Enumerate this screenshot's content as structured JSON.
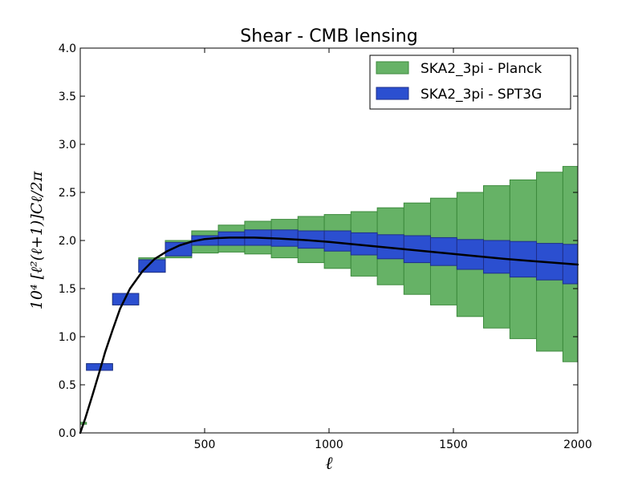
{
  "chart_data": {
    "type": "bar",
    "title": "Shear - CMB lensing",
    "xlabel": "ℓ",
    "ylabel": "10⁴ [ℓ²(ℓ+1)]Cℓ/2π",
    "xlim": [
      0,
      2000
    ],
    "ylim": [
      0.0,
      4.0
    ],
    "xticks": [
      500,
      1000,
      1500,
      2000
    ],
    "xtick_labels": [
      "500",
      "1000",
      "1500",
      "2000"
    ],
    "yticks": [
      0.0,
      0.5,
      1.0,
      1.5,
      2.0,
      2.5,
      3.0,
      3.5,
      4.0
    ],
    "ytick_labels": [
      "0.0",
      "0.5",
      "1.0",
      "1.5",
      "2.0",
      "2.5",
      "3.0",
      "3.5",
      "4.0"
    ],
    "legend_position": "top-right",
    "series": [
      {
        "name": "SKA2_3pi - Planck",
        "color": "#66b266",
        "edge_color": "#3d8a3d",
        "bins": [
          {
            "lo": 0,
            "hi": 25,
            "ymin": 0.09,
            "ymax": 0.11
          },
          {
            "lo": 25,
            "hi": 130,
            "ymin": 0.65,
            "ymax": 0.72
          },
          {
            "lo": 130,
            "hi": 235,
            "ymin": 1.33,
            "ymax": 1.45
          },
          {
            "lo": 235,
            "hi": 342,
            "ymin": 1.67,
            "ymax": 1.82
          },
          {
            "lo": 342,
            "hi": 448,
            "ymin": 1.82,
            "ymax": 2.0
          },
          {
            "lo": 448,
            "hi": 555,
            "ymin": 1.87,
            "ymax": 2.1
          },
          {
            "lo": 555,
            "hi": 661,
            "ymin": 1.88,
            "ymax": 2.16
          },
          {
            "lo": 661,
            "hi": 768,
            "ymin": 1.86,
            "ymax": 2.2
          },
          {
            "lo": 768,
            "hi": 875,
            "ymin": 1.82,
            "ymax": 2.22
          },
          {
            "lo": 875,
            "hi": 981,
            "ymin": 1.77,
            "ymax": 2.25
          },
          {
            "lo": 981,
            "hi": 1088,
            "ymin": 1.71,
            "ymax": 2.27
          },
          {
            "lo": 1088,
            "hi": 1194,
            "ymin": 1.63,
            "ymax": 2.3
          },
          {
            "lo": 1194,
            "hi": 1301,
            "ymin": 1.54,
            "ymax": 2.34
          },
          {
            "lo": 1301,
            "hi": 1408,
            "ymin": 1.44,
            "ymax": 2.39
          },
          {
            "lo": 1408,
            "hi": 1514,
            "ymin": 1.33,
            "ymax": 2.44
          },
          {
            "lo": 1514,
            "hi": 1621,
            "ymin": 1.21,
            "ymax": 2.5
          },
          {
            "lo": 1621,
            "hi": 1727,
            "ymin": 1.09,
            "ymax": 2.57
          },
          {
            "lo": 1727,
            "hi": 1834,
            "ymin": 0.98,
            "ymax": 2.63
          },
          {
            "lo": 1834,
            "hi": 1940,
            "ymin": 0.85,
            "ymax": 2.71
          },
          {
            "lo": 1940,
            "hi": 2000,
            "ymin": 0.74,
            "ymax": 2.77
          }
        ]
      },
      {
        "name": "SKA2_3pi - SPT3G",
        "color": "#2b4fd0",
        "edge_color": "#1f2f8a",
        "bins": [
          {
            "lo": 25,
            "hi": 130,
            "ymin": 0.65,
            "ymax": 0.72
          },
          {
            "lo": 130,
            "hi": 235,
            "ymin": 1.33,
            "ymax": 1.45
          },
          {
            "lo": 235,
            "hi": 342,
            "ymin": 1.67,
            "ymax": 1.8
          },
          {
            "lo": 342,
            "hi": 448,
            "ymin": 1.84,
            "ymax": 1.98
          },
          {
            "lo": 448,
            "hi": 555,
            "ymin": 1.95,
            "ymax": 2.05
          },
          {
            "lo": 555,
            "hi": 661,
            "ymin": 1.95,
            "ymax": 2.09
          },
          {
            "lo": 661,
            "hi": 768,
            "ymin": 1.95,
            "ymax": 2.11
          },
          {
            "lo": 768,
            "hi": 875,
            "ymin": 1.94,
            "ymax": 2.11
          },
          {
            "lo": 875,
            "hi": 981,
            "ymin": 1.92,
            "ymax": 2.1
          },
          {
            "lo": 981,
            "hi": 1088,
            "ymin": 1.89,
            "ymax": 2.1
          },
          {
            "lo": 1088,
            "hi": 1194,
            "ymin": 1.85,
            "ymax": 2.08
          },
          {
            "lo": 1194,
            "hi": 1301,
            "ymin": 1.81,
            "ymax": 2.06
          },
          {
            "lo": 1301,
            "hi": 1408,
            "ymin": 1.77,
            "ymax": 2.05
          },
          {
            "lo": 1408,
            "hi": 1514,
            "ymin": 1.74,
            "ymax": 2.03
          },
          {
            "lo": 1514,
            "hi": 1621,
            "ymin": 1.7,
            "ymax": 2.01
          },
          {
            "lo": 1621,
            "hi": 1727,
            "ymin": 1.66,
            "ymax": 2.0
          },
          {
            "lo": 1727,
            "hi": 1834,
            "ymin": 1.62,
            "ymax": 1.99
          },
          {
            "lo": 1834,
            "hi": 1940,
            "ymin": 1.59,
            "ymax": 1.97
          },
          {
            "lo": 1940,
            "hi": 2000,
            "ymin": 1.55,
            "ymax": 1.96
          }
        ]
      }
    ],
    "curve": {
      "name": "theory",
      "color": "#000000",
      "x": [
        0,
        20,
        50,
        80,
        100,
        130,
        160,
        200,
        250,
        300,
        350,
        400,
        450,
        500,
        550,
        600,
        650,
        700,
        800,
        900,
        1000,
        1100,
        1200,
        1300,
        1400,
        1500,
        1600,
        1700,
        1800,
        1900,
        2000
      ],
      "y": [
        0.0,
        0.15,
        0.4,
        0.66,
        0.84,
        1.07,
        1.29,
        1.5,
        1.68,
        1.81,
        1.89,
        1.95,
        1.99,
        2.015,
        2.025,
        2.03,
        2.03,
        2.03,
        2.02,
        2.005,
        1.985,
        1.96,
        1.935,
        1.91,
        1.885,
        1.86,
        1.835,
        1.81,
        1.79,
        1.77,
        1.75
      ]
    }
  }
}
